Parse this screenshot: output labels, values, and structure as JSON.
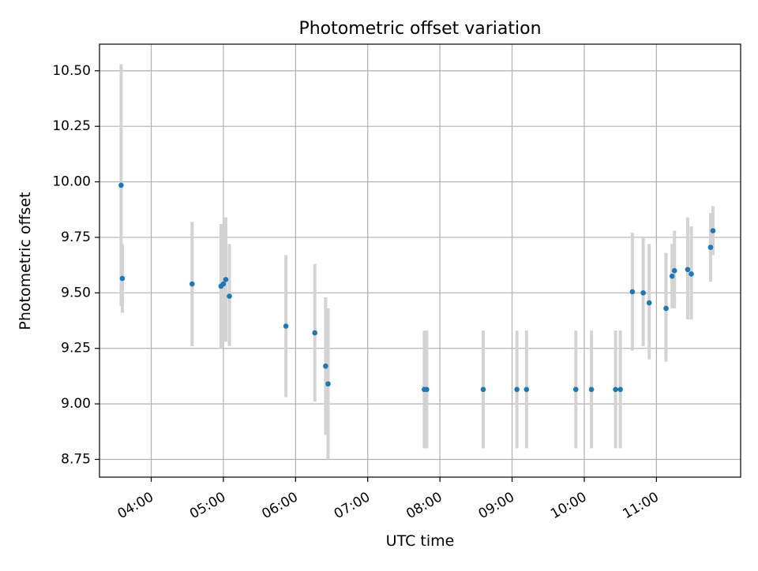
{
  "chart_data": {
    "type": "scatter",
    "title": "Photometric offset variation",
    "xlabel": "UTC time",
    "ylabel": "Photometric offset",
    "x_unit": "UTC time (HH:MM)",
    "xlim": [
      "03:17",
      "12:10"
    ],
    "ylim": [
      8.67,
      10.62
    ],
    "grid": true,
    "x_ticks": [
      "04:00",
      "05:00",
      "06:00",
      "07:00",
      "08:00",
      "09:00",
      "10:00",
      "11:00"
    ],
    "y_ticks": [
      8.75,
      9.0,
      9.25,
      9.5,
      9.75,
      10.0,
      10.25,
      10.5
    ],
    "y_tick_labels": [
      "8.75",
      "9.00",
      "9.25",
      "9.50",
      "9.75",
      "10.00",
      "10.25",
      "10.50"
    ],
    "colors": {
      "points": "#1f77b4",
      "error_bars": "#d3d3d3",
      "grid": "#b0b0b0"
    },
    "points": [
      {
        "t": "03:35",
        "y": 9.985,
        "err_low": 9.44,
        "err_high": 10.53
      },
      {
        "t": "03:36",
        "y": 9.565,
        "err_low": 9.41,
        "err_high": 9.72
      },
      {
        "t": "04:34",
        "y": 9.54,
        "err_low": 9.26,
        "err_high": 9.82
      },
      {
        "t": "04:58",
        "y": 9.53,
        "err_low": 9.25,
        "err_high": 9.81
      },
      {
        "t": "05:00",
        "y": 9.54,
        "err_low": 9.29,
        "err_high": 9.79
      },
      {
        "t": "05:02",
        "y": 9.56,
        "err_low": 9.28,
        "err_high": 9.84
      },
      {
        "t": "05:05",
        "y": 9.485,
        "err_low": 9.26,
        "err_high": 9.72
      },
      {
        "t": "05:52",
        "y": 9.35,
        "err_low": 9.03,
        "err_high": 9.67
      },
      {
        "t": "06:16",
        "y": 9.32,
        "err_low": 9.01,
        "err_high": 9.63
      },
      {
        "t": "06:25",
        "y": 9.17,
        "err_low": 8.86,
        "err_high": 9.48
      },
      {
        "t": "06:27",
        "y": 9.09,
        "err_low": 8.75,
        "err_high": 9.43
      },
      {
        "t": "07:47",
        "y": 9.065,
        "err_low": 8.8,
        "err_high": 9.33
      },
      {
        "t": "07:49",
        "y": 9.065,
        "err_low": 8.8,
        "err_high": 9.33
      },
      {
        "t": "08:36",
        "y": 9.065,
        "err_low": 8.8,
        "err_high": 9.33
      },
      {
        "t": "09:04",
        "y": 9.065,
        "err_low": 8.8,
        "err_high": 9.33
      },
      {
        "t": "09:12",
        "y": 9.065,
        "err_low": 8.8,
        "err_high": 9.33
      },
      {
        "t": "09:53",
        "y": 9.065,
        "err_low": 8.8,
        "err_high": 9.33
      },
      {
        "t": "10:06",
        "y": 9.065,
        "err_low": 8.8,
        "err_high": 9.33
      },
      {
        "t": "10:26",
        "y": 9.065,
        "err_low": 8.8,
        "err_high": 9.33
      },
      {
        "t": "10:30",
        "y": 9.065,
        "err_low": 8.8,
        "err_high": 9.33
      },
      {
        "t": "10:40",
        "y": 9.505,
        "err_low": 9.24,
        "err_high": 9.77
      },
      {
        "t": "10:49",
        "y": 9.5,
        "err_low": 9.26,
        "err_high": 9.75
      },
      {
        "t": "10:54",
        "y": 9.455,
        "err_low": 9.2,
        "err_high": 9.72
      },
      {
        "t": "11:08",
        "y": 9.43,
        "err_low": 9.19,
        "err_high": 9.68
      },
      {
        "t": "11:13",
        "y": 9.575,
        "err_low": 9.43,
        "err_high": 9.72
      },
      {
        "t": "11:15",
        "y": 9.6,
        "err_low": 9.43,
        "err_high": 9.78
      },
      {
        "t": "11:26",
        "y": 9.605,
        "err_low": 9.38,
        "err_high": 9.84
      },
      {
        "t": "11:29",
        "y": 9.585,
        "err_low": 9.38,
        "err_high": 9.8
      },
      {
        "t": "11:45",
        "y": 9.705,
        "err_low": 9.55,
        "err_high": 9.86
      },
      {
        "t": "11:47",
        "y": 9.78,
        "err_low": 9.67,
        "err_high": 9.89
      }
    ]
  }
}
